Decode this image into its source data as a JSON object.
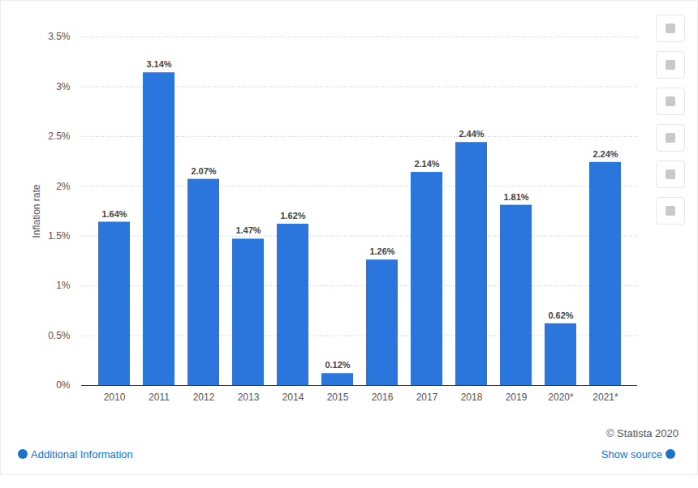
{
  "chart_data": {
    "type": "bar",
    "y_label": "Inflation rate",
    "categories": [
      "2010",
      "2011",
      "2012",
      "2013",
      "2014",
      "2015",
      "2016",
      "2017",
      "2018",
      "2019",
      "2020*",
      "2021*"
    ],
    "values": [
      1.64,
      3.14,
      2.07,
      1.47,
      1.62,
      0.12,
      1.26,
      2.14,
      2.44,
      1.81,
      0.62,
      2.24
    ],
    "value_labels": [
      "1.64%",
      "3.14%",
      "2.07%",
      "1.47%",
      "1.62%",
      "0.12%",
      "1.26%",
      "2.14%",
      "2.44%",
      "1.81%",
      "0.62%",
      "2.24%"
    ],
    "color": "#2a76dd",
    "ylim": [
      0,
      3.5
    ],
    "yticks": [
      {
        "value": 0,
        "label": "0%"
      },
      {
        "value": 0.5,
        "label": "0.5%"
      },
      {
        "value": 1,
        "label": "1%"
      },
      {
        "value": 1.5,
        "label": "1.5%"
      },
      {
        "value": 2,
        "label": "2%"
      },
      {
        "value": 2.5,
        "label": "2.5%"
      },
      {
        "value": 3,
        "label": "3%"
      },
      {
        "value": 3.5,
        "label": "3.5%"
      }
    ],
    "grid": true,
    "data_labels": true,
    "caption": "© Statista 2020",
    "annotations": [
      "Additional Information",
      "Show source"
    ]
  }
}
